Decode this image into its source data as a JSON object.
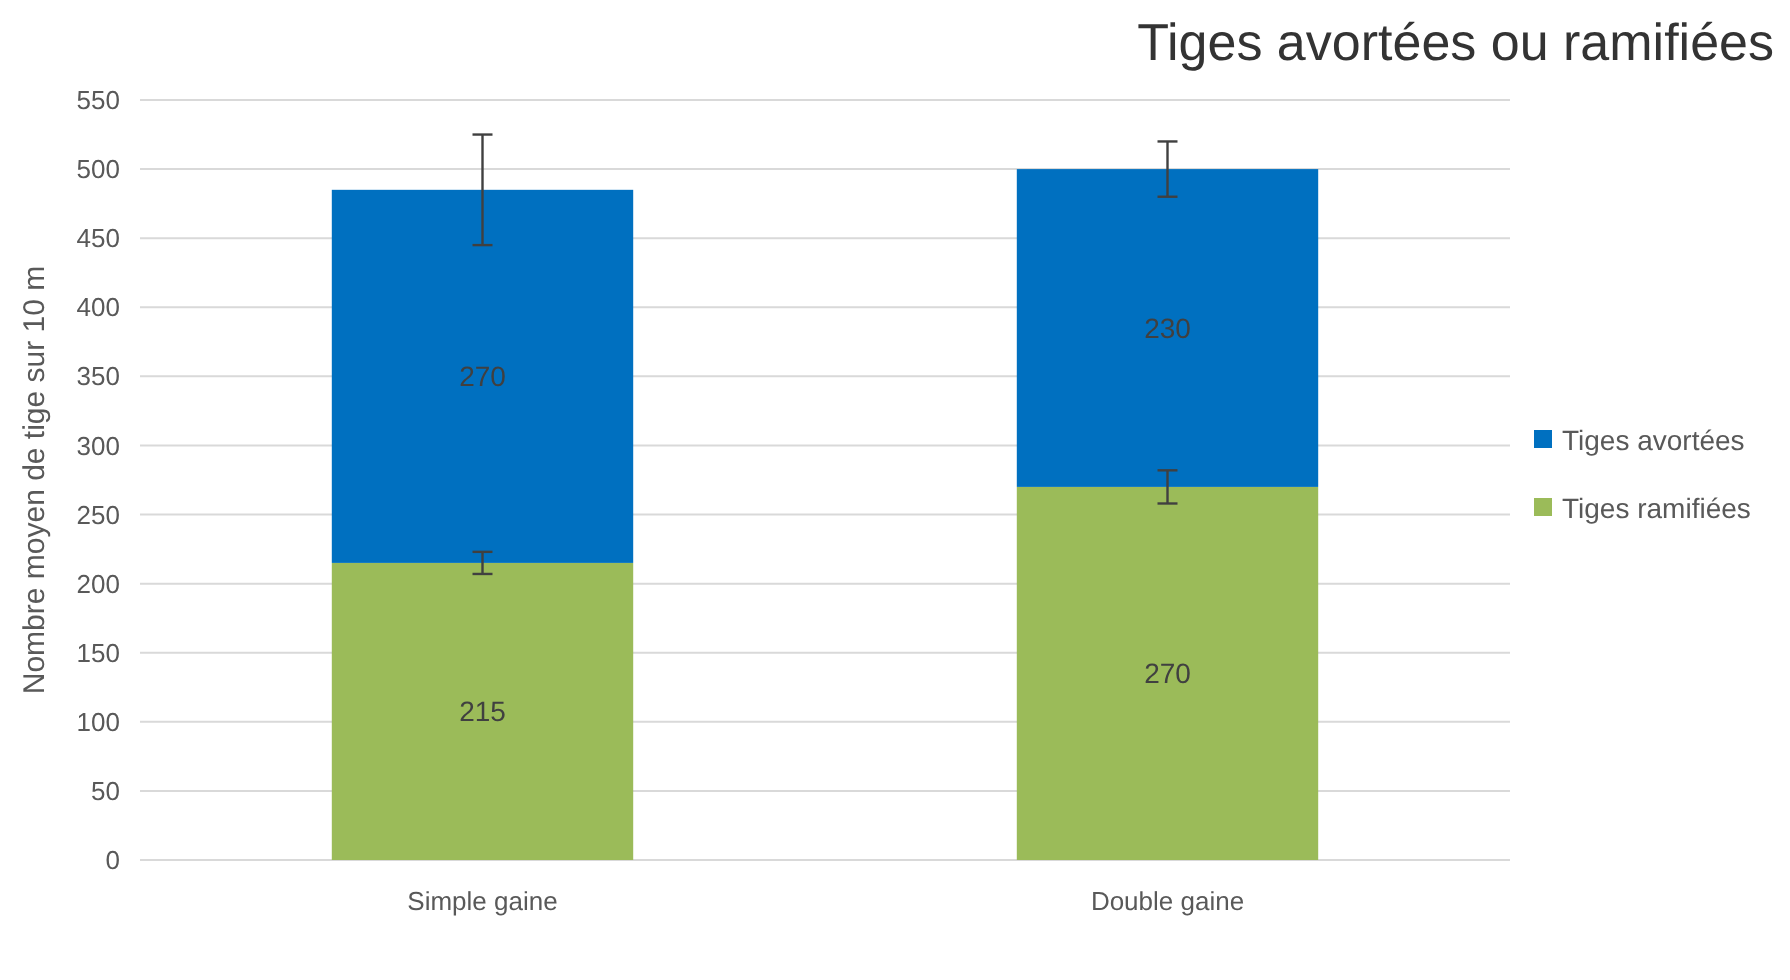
{
  "chart_data": {
    "type": "bar",
    "title": "Tiges avortées ou ramifiées",
    "ylabel": "Nombre moyen de tige sur 10 m",
    "categories": [
      "Simple gaine",
      "Double gaine"
    ],
    "stacked": true,
    "data_labels": true,
    "grid": "y",
    "legend": "right",
    "ylim": [
      0,
      550
    ],
    "yticks": [
      0,
      50,
      100,
      150,
      200,
      250,
      300,
      350,
      400,
      450,
      500,
      550
    ],
    "series": [
      {
        "name": "Tiges ramifiées",
        "color": "#9bbb59",
        "values": [
          215,
          270
        ],
        "errors": [
          8,
          12
        ]
      },
      {
        "name": "Tiges avortées",
        "color": "#0070c0",
        "values": [
          270,
          230
        ],
        "errors": [
          40,
          20
        ]
      }
    ]
  }
}
